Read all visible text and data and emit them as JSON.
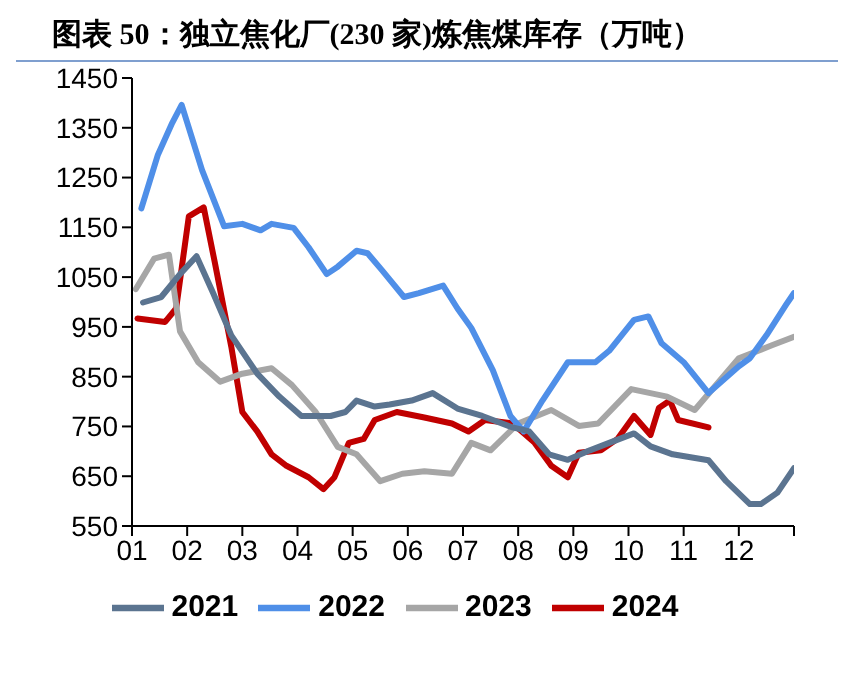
{
  "chart_data": {
    "type": "line",
    "title": "图表 50：独立焦化厂(230 家)炼焦煤库存（万吨）",
    "xlim": [
      1,
      13
    ],
    "xticks": [
      {
        "value": 1,
        "label": "01"
      },
      {
        "value": 2,
        "label": "02"
      },
      {
        "value": 3,
        "label": "03"
      },
      {
        "value": 4,
        "label": "04"
      },
      {
        "value": 5,
        "label": "05"
      },
      {
        "value": 6,
        "label": "06"
      },
      {
        "value": 7,
        "label": "07"
      },
      {
        "value": 8,
        "label": "08"
      },
      {
        "value": 9,
        "label": "09"
      },
      {
        "value": 10,
        "label": "10"
      },
      {
        "value": 11,
        "label": "11"
      },
      {
        "value": 12,
        "label": "12"
      },
      {
        "value": 13,
        "label": null
      }
    ],
    "ylim": [
      550,
      1450
    ],
    "yticks": [
      550,
      650,
      750,
      850,
      950,
      1050,
      1150,
      1250,
      1350,
      1450
    ],
    "grid": false,
    "legend": "bottom",
    "marker": "none",
    "line_style": "solid",
    "series": [
      {
        "name": "2024",
        "color": "#c00000",
        "x": [
          1.1,
          1.6,
          1.8,
          2.03,
          2.3,
          2.5,
          2.8,
          3.0,
          3.27,
          3.53,
          3.8,
          4.2,
          4.47,
          4.67,
          4.93,
          5.2,
          5.4,
          5.8,
          6.3,
          6.8,
          7.1,
          7.4,
          7.9,
          8.3,
          8.6,
          8.9,
          9.1,
          9.5,
          9.8,
          10.1,
          10.4,
          10.55,
          10.75,
          10.9,
          11.45
        ],
        "values": [
          967,
          960,
          987,
          1172,
          1190,
          1080,
          910,
          779,
          740,
          694,
          671,
          648,
          624,
          648,
          717,
          725,
          763,
          779,
          768,
          756,
          740,
          763,
          756,
          717,
          671,
          648,
          697,
          702,
          725,
          771,
          733,
          787,
          802,
          763,
          748
        ]
      },
      {
        "name": "2023",
        "color": "#a6a6a6",
        "x": [
          1.07,
          1.4,
          1.67,
          1.87,
          2.2,
          2.6,
          3.0,
          3.53,
          3.9,
          4.33,
          4.73,
          5.07,
          5.5,
          5.9,
          6.3,
          6.8,
          7.15,
          7.5,
          8.0,
          8.6,
          9.1,
          9.45,
          10.05,
          10.7,
          11.2,
          12.0,
          12.6,
          13
        ],
        "values": [
          1026,
          1087,
          1095,
          941,
          879,
          840,
          856,
          867,
          833,
          779,
          709,
          694,
          640,
          655,
          660,
          655,
          717,
          702,
          756,
          783,
          751,
          756,
          825,
          810,
          783,
          887,
          913,
          930
        ]
      },
      {
        "name": "2022",
        "color": "#4f8fe8",
        "x": [
          1.17,
          1.47,
          1.73,
          1.9,
          2.27,
          2.67,
          3.0,
          3.33,
          3.53,
          3.93,
          4.2,
          4.53,
          4.73,
          5.07,
          5.27,
          5.53,
          5.93,
          6.2,
          6.64,
          6.9,
          7.15,
          7.54,
          7.86,
          8.1,
          8.44,
          8.9,
          9.4,
          9.65,
          10.1,
          10.36,
          10.6,
          11.0,
          11.45,
          12.0,
          12.2,
          12.5,
          12.86,
          13
        ],
        "values": [
          1188,
          1296,
          1360,
          1396,
          1265,
          1152,
          1157,
          1144,
          1157,
          1149,
          1110,
          1056,
          1071,
          1103,
          1098,
          1064,
          1010,
          1018,
          1033,
          987,
          948,
          863,
          771,
          740,
          802,
          879,
          879,
          902,
          964,
          971,
          917,
          879,
          817,
          871,
          887,
          933,
          995,
          1018
        ]
      },
      {
        "name": "2021",
        "color": "#5b7490",
        "x": [
          1.2,
          1.53,
          1.87,
          2.17,
          2.47,
          2.8,
          3.27,
          3.67,
          4.07,
          4.6,
          4.87,
          5.07,
          5.4,
          5.67,
          6.07,
          6.45,
          6.9,
          7.35,
          7.9,
          8.2,
          8.56,
          8.9,
          9.3,
          9.65,
          10.1,
          10.4,
          10.8,
          11.45,
          11.77,
          12.2,
          12.4,
          12.7,
          13
        ],
        "values": [
          999,
          1010,
          1056,
          1092,
          1018,
          933,
          856,
          810,
          771,
          771,
          779,
          802,
          790,
          794,
          802,
          817,
          786,
          771,
          748,
          740,
          694,
          683,
          702,
          717,
          736,
          710,
          694,
          682,
          640,
          594,
          594,
          617,
          666
        ]
      }
    ]
  }
}
